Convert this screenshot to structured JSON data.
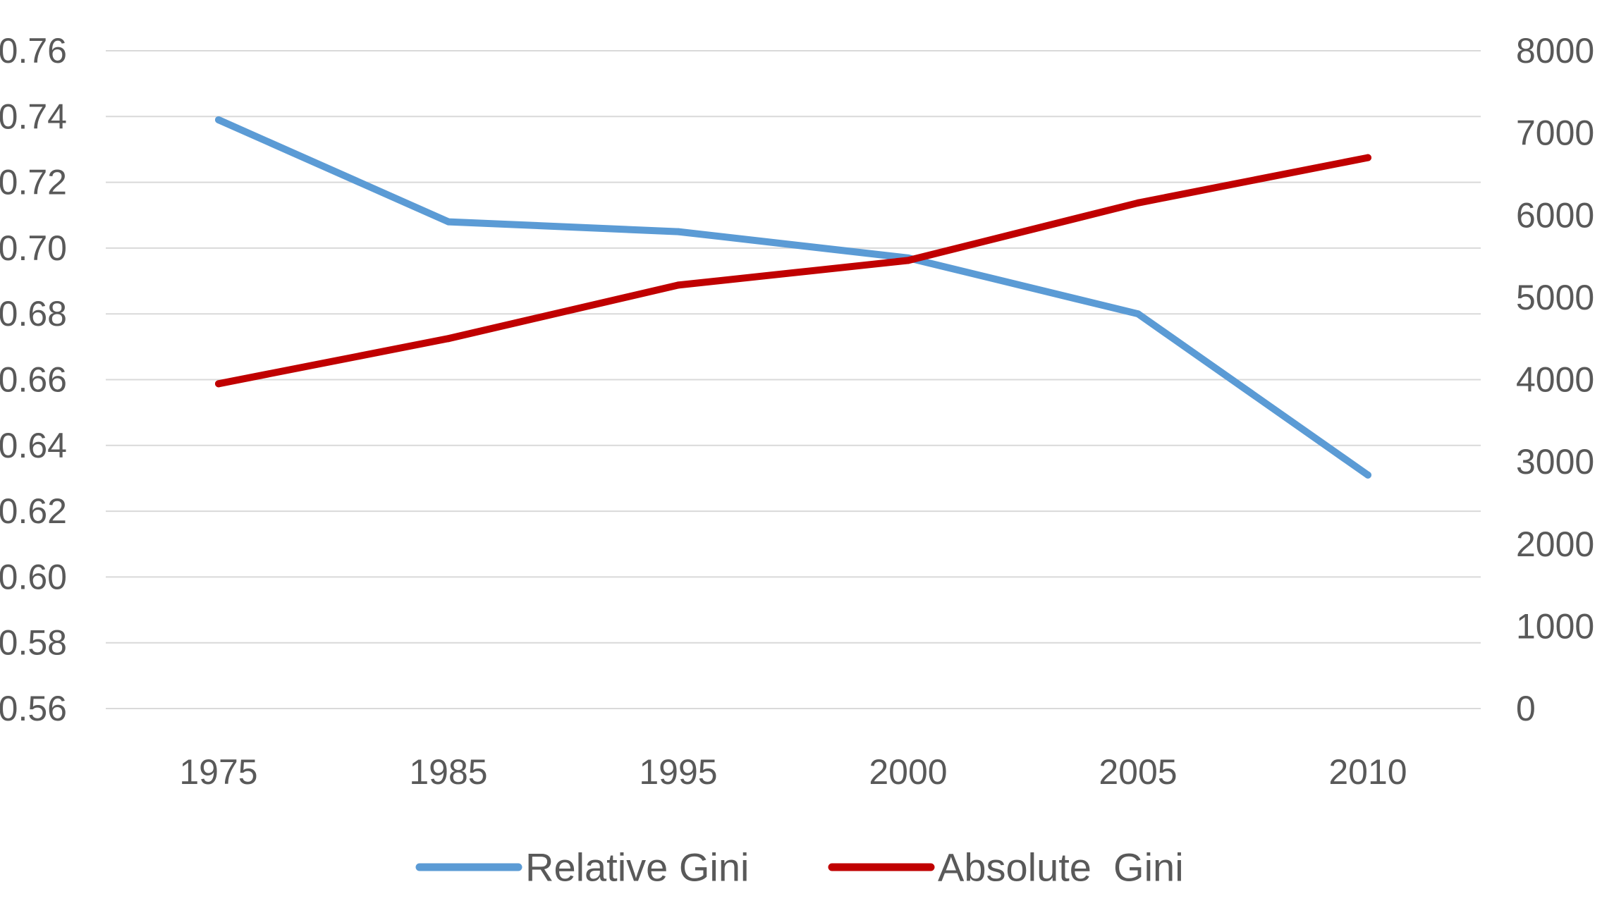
{
  "chart_data": {
    "type": "line",
    "categories": [
      "1975",
      "1985",
      "1995",
      "2000",
      "2005",
      "2010"
    ],
    "y_left": {
      "min": 0.56,
      "max": 0.76,
      "ticks": [
        "0.56",
        "0.58",
        "0.60",
        "0.62",
        "0.64",
        "0.66",
        "0.68",
        "0.70",
        "0.72",
        "0.74",
        "0.76"
      ]
    },
    "y_right": {
      "min": 0,
      "max": 8000,
      "ticks": [
        "0",
        "1000",
        "2000",
        "3000",
        "4000",
        "5000",
        "6000",
        "7000",
        "8000"
      ]
    },
    "series": [
      {
        "name": "Relative Gini",
        "axis": "left",
        "color": "#5B9BD5",
        "values": [
          0.739,
          0.708,
          0.705,
          0.697,
          0.68,
          0.631
        ]
      },
      {
        "name": "Absolute  Gini",
        "axis": "right",
        "color": "#C00000",
        "values": [
          3950,
          4500,
          5150,
          5450,
          6150,
          6700
        ]
      }
    ],
    "grid": true,
    "legend_position": "bottom"
  }
}
